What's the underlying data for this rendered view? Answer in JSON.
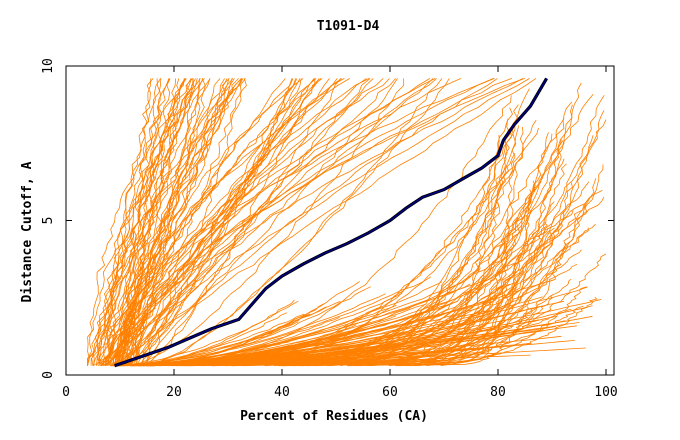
{
  "chart_data": {
    "type": "line",
    "title": "T1091-D4",
    "xlabel": "Percent of Residues (CA)",
    "ylabel": "Distance Cutoff, A",
    "xlim": [
      0,
      100
    ],
    "ylim": [
      0,
      10
    ],
    "x_ticks": [
      "0",
      "20",
      "40",
      "60",
      "80",
      "100"
    ],
    "y_ticks": [
      "0",
      "5",
      "10"
    ],
    "grid": false,
    "legend": "none",
    "colors": {
      "background_curves": "#ff8000",
      "highlight_curve": "#000080",
      "highlight_outline": "#000000",
      "axes": "#000000"
    },
    "highlight_series": {
      "x": [
        9,
        14,
        19,
        23,
        27,
        32,
        34,
        37,
        40,
        44,
        48,
        52,
        56,
        60,
        63,
        66,
        70,
        74,
        77,
        80,
        81,
        83,
        86,
        89
      ],
      "y": [
        0.3,
        0.6,
        0.9,
        1.2,
        1.5,
        1.8,
        2.2,
        2.8,
        3.2,
        3.6,
        3.95,
        4.25,
        4.6,
        5.0,
        5.4,
        5.75,
        6.0,
        6.4,
        6.7,
        7.1,
        7.6,
        8.1,
        8.7,
        9.6
      ]
    },
    "background_series_envelope": {
      "steep_early_left_x": [
        4,
        18
      ],
      "steep_mid_x": [
        12,
        60
      ],
      "late_right_x": [
        60,
        100
      ],
      "low_cutoff_band_y": [
        0.3,
        3.5
      ]
    }
  }
}
